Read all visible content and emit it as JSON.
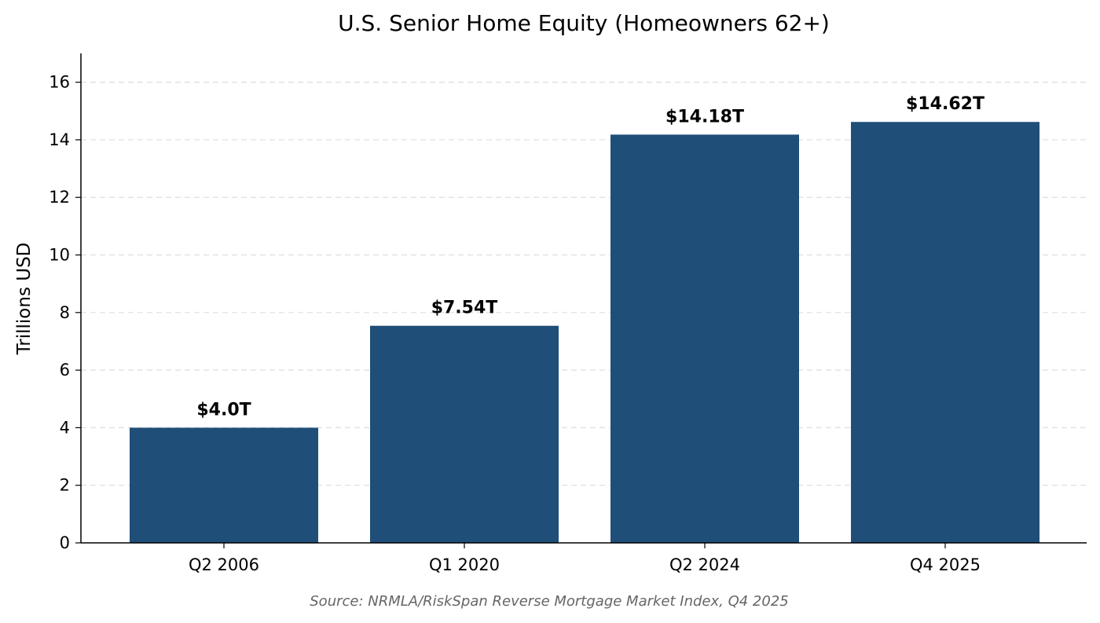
{
  "chart_data": {
    "type": "bar",
    "title": "U.S. Senior Home Equity (Homeowners 62+)",
    "xlabel": "",
    "ylabel": "Trillions USD",
    "categories": [
      "Q2 2006",
      "Q1 2020",
      "Q2 2024",
      "Q4 2025"
    ],
    "values": [
      4.0,
      7.54,
      14.18,
      14.62
    ],
    "value_labels": [
      "$4.0T",
      "$7.54T",
      "$14.18T",
      "$14.62T"
    ],
    "ylim": [
      0,
      17
    ],
    "yticks": [
      0,
      2,
      4,
      6,
      8,
      10,
      12,
      14,
      16
    ],
    "grid": true,
    "grid_axis": "y",
    "grid_style": "dashed",
    "bar_color": "#1f4e79",
    "source_note": "Source: NRMLA/RiskSpan Reverse Mortgage Market Index, Q4 2025",
    "source_color": "#666666"
  }
}
